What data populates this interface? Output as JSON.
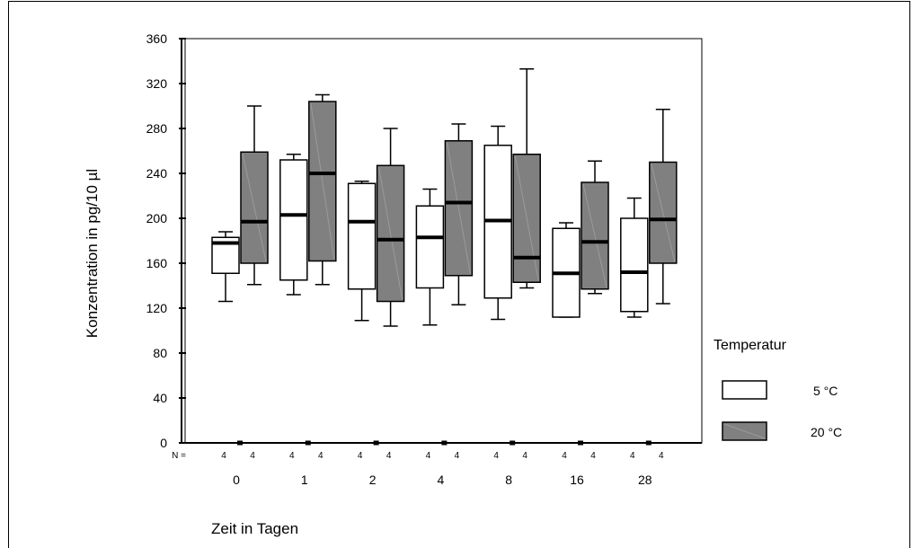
{
  "chart_data": {
    "type": "boxplot",
    "ylabel": "Konzentration in pg/10 µl",
    "xlabel": "Zeit in Tagen",
    "ylim": [
      0,
      360
    ],
    "yticks": [
      0,
      40,
      80,
      120,
      160,
      200,
      240,
      280,
      320,
      360
    ],
    "n_label": "N =",
    "categories": [
      "0",
      "1",
      "2",
      "4",
      "8",
      "16",
      "28"
    ],
    "legend": {
      "title": "Temperatur",
      "position": "right"
    },
    "series": [
      {
        "name": "5 °C",
        "color": "#ffffff",
        "n": [
          4,
          4,
          4,
          4,
          4,
          4,
          4
        ],
        "boxes": [
          {
            "min": 126,
            "q1": 151,
            "median": 178,
            "q3": 183,
            "max": 188
          },
          {
            "min": 132,
            "q1": 145,
            "median": 203,
            "q3": 252,
            "max": 257
          },
          {
            "min": 109,
            "q1": 137,
            "median": 197,
            "q3": 231,
            "max": 233
          },
          {
            "min": 105,
            "q1": 138,
            "median": 183,
            "q3": 211,
            "max": 226
          },
          {
            "min": 110,
            "q1": 129,
            "median": 198,
            "q3": 265,
            "max": 282
          },
          {
            "min": 112,
            "q1": 112,
            "median": 151,
            "q3": 191,
            "max": 196
          },
          {
            "min": 112,
            "q1": 117,
            "median": 152,
            "q3": 200,
            "max": 218
          }
        ]
      },
      {
        "name": "20 °C",
        "color": "#808080",
        "n": [
          4,
          4,
          4,
          4,
          4,
          4,
          4
        ],
        "boxes": [
          {
            "min": 141,
            "q1": 160,
            "median": 197,
            "q3": 259,
            "max": 300
          },
          {
            "min": 141,
            "q1": 162,
            "median": 240,
            "q3": 304,
            "max": 310
          },
          {
            "min": 104,
            "q1": 126,
            "median": 181,
            "q3": 247,
            "max": 280
          },
          {
            "min": 123,
            "q1": 149,
            "median": 214,
            "q3": 269,
            "max": 284
          },
          {
            "min": 138,
            "q1": 143,
            "median": 165,
            "q3": 257,
            "max": 333
          },
          {
            "min": 133,
            "q1": 137,
            "median": 179,
            "q3": 232,
            "max": 251
          },
          {
            "min": 124,
            "q1": 160,
            "median": 199,
            "q3": 250,
            "max": 297
          }
        ]
      }
    ]
  }
}
